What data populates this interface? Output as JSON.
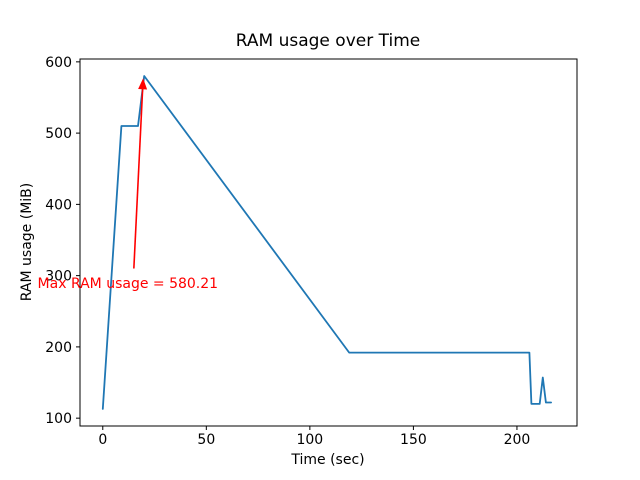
{
  "figure": {
    "background": "#ffffff",
    "axes_color": "#000000"
  },
  "chart_data": {
    "type": "line",
    "title": "RAM usage over Time",
    "xlabel": "Time (sec)",
    "ylabel": "RAM usage (MiB)",
    "xlim": [
      -11,
      229
    ],
    "ylim": [
      89,
      604
    ],
    "xticks": [
      0,
      50,
      100,
      150,
      200
    ],
    "yticks": [
      100,
      200,
      300,
      400,
      500,
      600
    ],
    "grid": false,
    "legend": null,
    "series": [
      {
        "color": "#1f77b4",
        "points": [
          [
            0,
            113
          ],
          [
            9,
            510
          ],
          [
            17,
            510
          ],
          [
            20,
            580.21
          ],
          [
            119,
            192
          ],
          [
            206,
            192
          ],
          [
            207,
            120
          ],
          [
            211,
            120
          ],
          [
            212.5,
            157
          ],
          [
            214,
            122
          ],
          [
            216.5,
            122
          ]
        ]
      }
    ],
    "annotation": {
      "label": "Max RAM usage = 580.21",
      "color": "#ff0000",
      "arrow_tip": [
        19.5,
        577
      ],
      "arrow_tail": [
        15,
        310
      ],
      "text_anchor": [
        -31.5,
        288
      ]
    }
  }
}
